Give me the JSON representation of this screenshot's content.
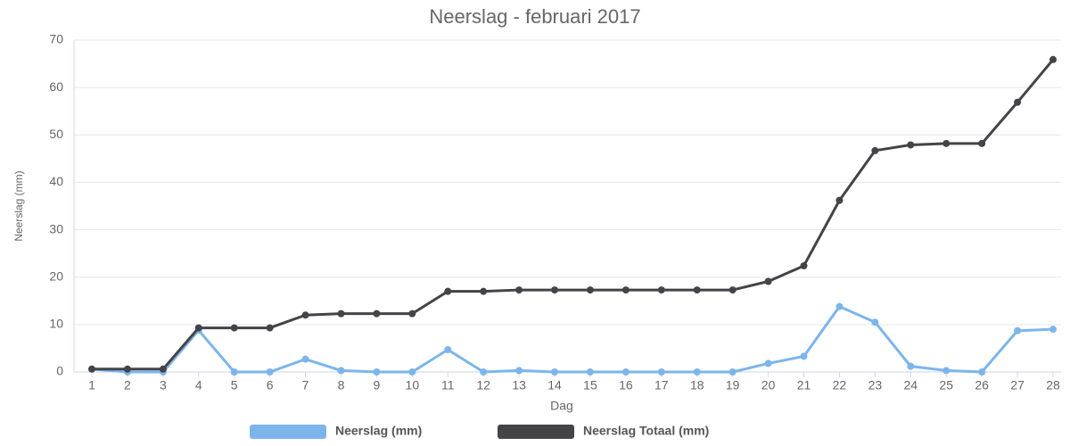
{
  "chart_data": {
    "type": "line",
    "title": "Neerslag - februari 2017",
    "x_label": "Dag",
    "y_label": "Neerslag (mm)",
    "categories": [
      "1",
      "2",
      "3",
      "4",
      "5",
      "6",
      "7",
      "8",
      "9",
      "10",
      "11",
      "12",
      "13",
      "14",
      "15",
      "16",
      "17",
      "18",
      "19",
      "20",
      "21",
      "22",
      "23",
      "24",
      "25",
      "26",
      "27",
      "28"
    ],
    "series": [
      {
        "name": "Neerslag (mm)",
        "color": "#7cb5ec",
        "values": [
          0.6,
          0,
          0,
          8.8,
          0,
          0,
          2.7,
          0.3,
          0,
          0,
          4.7,
          0,
          0.3,
          0,
          0,
          0,
          0,
          0,
          0,
          1.8,
          3.3,
          13.8,
          10.5,
          1.2,
          0.3,
          0,
          8.7,
          9.0
        ]
      },
      {
        "name": "Neerslag Totaal (mm)",
        "color": "#434348",
        "values": [
          0.6,
          0.6,
          0.6,
          9.3,
          9.3,
          9.3,
          12.0,
          12.3,
          12.3,
          12.3,
          17.0,
          17.0,
          17.3,
          17.3,
          17.3,
          17.3,
          17.3,
          17.3,
          17.3,
          19.1,
          22.4,
          36.2,
          46.7,
          47.9,
          48.2,
          48.2,
          56.9,
          65.9
        ]
      }
    ],
    "ylim": [
      0,
      70
    ],
    "yticks": [
      0,
      10,
      20,
      30,
      40,
      50,
      60,
      70
    ],
    "grid": true
  }
}
